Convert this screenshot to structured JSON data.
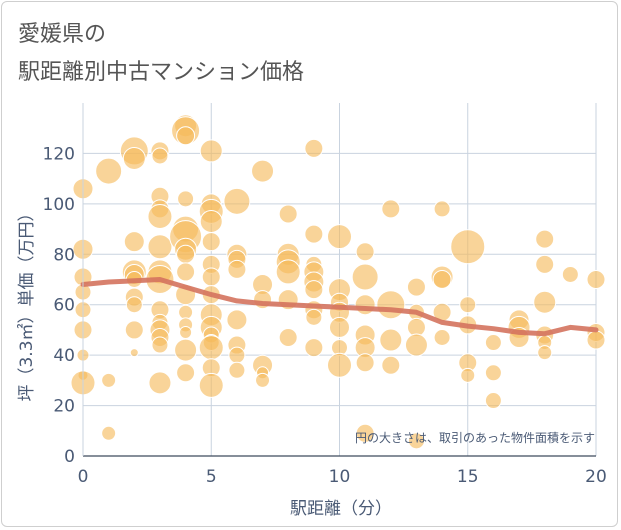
{
  "title_line1": "愛媛県の",
  "title_line2": "駅距離別中古マンション価格",
  "colors": {
    "bubble": "#f5b95a",
    "trend": "#d4735e",
    "grid": "#c9d3df",
    "text": "#4a5a75"
  },
  "chart_data": {
    "type": "scatter",
    "xlabel": "駅距離（分）",
    "ylabel": "坪（3.3㎡）単価（万円）",
    "xlim": [
      0,
      20
    ],
    "ylim": [
      0,
      140
    ],
    "xticks": [
      0,
      5,
      10,
      15,
      20
    ],
    "yticks": [
      0,
      20,
      40,
      60,
      80,
      100,
      120
    ],
    "grid": true,
    "annotation": "円の大きさは、取引のあった物件面積を示す",
    "points": [
      {
        "x": 0,
        "y": 106,
        "s": 10
      },
      {
        "x": 0,
        "y": 82,
        "s": 10
      },
      {
        "x": 0,
        "y": 71,
        "s": 9
      },
      {
        "x": 0,
        "y": 65,
        "s": 8
      },
      {
        "x": 0,
        "y": 58,
        "s": 8
      },
      {
        "x": 0,
        "y": 50,
        "s": 9
      },
      {
        "x": 0,
        "y": 40,
        "s": 6
      },
      {
        "x": 0,
        "y": 32,
        "s": 5
      },
      {
        "x": 0,
        "y": 29,
        "s": 12
      },
      {
        "x": 1,
        "y": 113,
        "s": 13
      },
      {
        "x": 1,
        "y": 30,
        "s": 7
      },
      {
        "x": 1,
        "y": 9,
        "s": 7
      },
      {
        "x": 2,
        "y": 121,
        "s": 14
      },
      {
        "x": 2,
        "y": 118,
        "s": 11
      },
      {
        "x": 2,
        "y": 85,
        "s": 10
      },
      {
        "x": 2,
        "y": 73,
        "s": 12
      },
      {
        "x": 2,
        "y": 72,
        "s": 10
      },
      {
        "x": 2,
        "y": 70,
        "s": 8
      },
      {
        "x": 2,
        "y": 63,
        "s": 9
      },
      {
        "x": 2,
        "y": 60,
        "s": 8
      },
      {
        "x": 2,
        "y": 50,
        "s": 9
      },
      {
        "x": 2,
        "y": 41,
        "s": 4
      },
      {
        "x": 3,
        "y": 121,
        "s": 9
      },
      {
        "x": 3,
        "y": 119,
        "s": 8
      },
      {
        "x": 3,
        "y": 103,
        "s": 9
      },
      {
        "x": 3,
        "y": 98,
        "s": 9
      },
      {
        "x": 3,
        "y": 95,
        "s": 12
      },
      {
        "x": 3,
        "y": 83,
        "s": 12
      },
      {
        "x": 3,
        "y": 73,
        "s": 12
      },
      {
        "x": 3,
        "y": 70,
        "s": 14
      },
      {
        "x": 3,
        "y": 58,
        "s": 9
      },
      {
        "x": 3,
        "y": 53,
        "s": 8
      },
      {
        "x": 3,
        "y": 50,
        "s": 10
      },
      {
        "x": 3,
        "y": 47,
        "s": 9
      },
      {
        "x": 3,
        "y": 44,
        "s": 8
      },
      {
        "x": 3,
        "y": 29,
        "s": 11
      },
      {
        "x": 4,
        "y": 131,
        "s": 11
      },
      {
        "x": 4,
        "y": 129,
        "s": 14
      },
      {
        "x": 4,
        "y": 127,
        "s": 9
      },
      {
        "x": 4,
        "y": 102,
        "s": 8
      },
      {
        "x": 4,
        "y": 90,
        "s": 13
      },
      {
        "x": 4,
        "y": 87,
        "s": 16
      },
      {
        "x": 4,
        "y": 82,
        "s": 11
      },
      {
        "x": 4,
        "y": 80,
        "s": 9
      },
      {
        "x": 4,
        "y": 73,
        "s": 9
      },
      {
        "x": 4,
        "y": 64,
        "s": 10
      },
      {
        "x": 4,
        "y": 57,
        "s": 7
      },
      {
        "x": 4,
        "y": 52,
        "s": 7
      },
      {
        "x": 4,
        "y": 49,
        "s": 6
      },
      {
        "x": 4,
        "y": 42,
        "s": 11
      },
      {
        "x": 4,
        "y": 33,
        "s": 9
      },
      {
        "x": 5,
        "y": 121,
        "s": 11
      },
      {
        "x": 5,
        "y": 100,
        "s": 10
      },
      {
        "x": 5,
        "y": 97,
        "s": 12
      },
      {
        "x": 5,
        "y": 93,
        "s": 11
      },
      {
        "x": 5,
        "y": 85,
        "s": 9
      },
      {
        "x": 5,
        "y": 76,
        "s": 9
      },
      {
        "x": 5,
        "y": 71,
        "s": 9
      },
      {
        "x": 5,
        "y": 64,
        "s": 9
      },
      {
        "x": 5,
        "y": 56,
        "s": 11
      },
      {
        "x": 5,
        "y": 51,
        "s": 11
      },
      {
        "x": 5,
        "y": 48,
        "s": 8
      },
      {
        "x": 5,
        "y": 45,
        "s": 8
      },
      {
        "x": 5,
        "y": 43,
        "s": 12
      },
      {
        "x": 5,
        "y": 35,
        "s": 9
      },
      {
        "x": 5,
        "y": 28,
        "s": 12
      },
      {
        "x": 6,
        "y": 101,
        "s": 13
      },
      {
        "x": 6,
        "y": 80,
        "s": 10
      },
      {
        "x": 6,
        "y": 78,
        "s": 9
      },
      {
        "x": 6,
        "y": 74,
        "s": 9
      },
      {
        "x": 6,
        "y": 54,
        "s": 10
      },
      {
        "x": 6,
        "y": 44,
        "s": 9
      },
      {
        "x": 6,
        "y": 40,
        "s": 8
      },
      {
        "x": 6,
        "y": 34,
        "s": 8
      },
      {
        "x": 7,
        "y": 113,
        "s": 11
      },
      {
        "x": 7,
        "y": 68,
        "s": 10
      },
      {
        "x": 7,
        "y": 62,
        "s": 9
      },
      {
        "x": 7,
        "y": 36,
        "s": 10
      },
      {
        "x": 7,
        "y": 33,
        "s": 6
      },
      {
        "x": 7,
        "y": 30,
        "s": 7
      },
      {
        "x": 8,
        "y": 96,
        "s": 9
      },
      {
        "x": 8,
        "y": 80,
        "s": 11
      },
      {
        "x": 8,
        "y": 77,
        "s": 12
      },
      {
        "x": 8,
        "y": 73,
        "s": 12
      },
      {
        "x": 8,
        "y": 62,
        "s": 10
      },
      {
        "x": 8,
        "y": 47,
        "s": 9
      },
      {
        "x": 9,
        "y": 122,
        "s": 9
      },
      {
        "x": 9,
        "y": 88,
        "s": 9
      },
      {
        "x": 9,
        "y": 76,
        "s": 8
      },
      {
        "x": 9,
        "y": 73,
        "s": 10
      },
      {
        "x": 9,
        "y": 69,
        "s": 10
      },
      {
        "x": 9,
        "y": 66,
        "s": 9
      },
      {
        "x": 9,
        "y": 58,
        "s": 9
      },
      {
        "x": 9,
        "y": 55,
        "s": 8
      },
      {
        "x": 9,
        "y": 43,
        "s": 9
      },
      {
        "x": 10,
        "y": 87,
        "s": 12
      },
      {
        "x": 10,
        "y": 66,
        "s": 11
      },
      {
        "x": 10,
        "y": 61,
        "s": 9
      },
      {
        "x": 10,
        "y": 57,
        "s": 10
      },
      {
        "x": 10,
        "y": 51,
        "s": 10
      },
      {
        "x": 10,
        "y": 43,
        "s": 8
      },
      {
        "x": 10,
        "y": 36,
        "s": 12
      },
      {
        "x": 11,
        "y": 81,
        "s": 9
      },
      {
        "x": 11,
        "y": 71,
        "s": 13
      },
      {
        "x": 11,
        "y": 60,
        "s": 10
      },
      {
        "x": 11,
        "y": 48,
        "s": 10
      },
      {
        "x": 11,
        "y": 43,
        "s": 10
      },
      {
        "x": 11,
        "y": 37,
        "s": 9
      },
      {
        "x": 11,
        "y": 9,
        "s": 9
      },
      {
        "x": 12,
        "y": 98,
        "s": 9
      },
      {
        "x": 12,
        "y": 60,
        "s": 14
      },
      {
        "x": 12,
        "y": 46,
        "s": 11
      },
      {
        "x": 12,
        "y": 36,
        "s": 9
      },
      {
        "x": 13,
        "y": 67,
        "s": 9
      },
      {
        "x": 13,
        "y": 57,
        "s": 8
      },
      {
        "x": 13,
        "y": 51,
        "s": 9
      },
      {
        "x": 13,
        "y": 44,
        "s": 11
      },
      {
        "x": 13,
        "y": 6,
        "s": 8
      },
      {
        "x": 14,
        "y": 98,
        "s": 8
      },
      {
        "x": 14,
        "y": 71,
        "s": 11
      },
      {
        "x": 14,
        "y": 70,
        "s": 9
      },
      {
        "x": 14,
        "y": 57,
        "s": 9
      },
      {
        "x": 14,
        "y": 47,
        "s": 8
      },
      {
        "x": 15,
        "y": 83,
        "s": 17
      },
      {
        "x": 15,
        "y": 60,
        "s": 8
      },
      {
        "x": 15,
        "y": 52,
        "s": 9
      },
      {
        "x": 15,
        "y": 37,
        "s": 9
      },
      {
        "x": 15,
        "y": 32,
        "s": 7
      },
      {
        "x": 16,
        "y": 45,
        "s": 8
      },
      {
        "x": 16,
        "y": 33,
        "s": 8
      },
      {
        "x": 16,
        "y": 22,
        "s": 8
      },
      {
        "x": 17,
        "y": 54,
        "s": 10
      },
      {
        "x": 17,
        "y": 51,
        "s": 11
      },
      {
        "x": 17,
        "y": 47,
        "s": 10
      },
      {
        "x": 18,
        "y": 86,
        "s": 9
      },
      {
        "x": 18,
        "y": 76,
        "s": 9
      },
      {
        "x": 18,
        "y": 61,
        "s": 11
      },
      {
        "x": 18,
        "y": 48,
        "s": 9
      },
      {
        "x": 18,
        "y": 45,
        "s": 7
      },
      {
        "x": 18,
        "y": 41,
        "s": 7
      },
      {
        "x": 19,
        "y": 72,
        "s": 8
      },
      {
        "x": 20,
        "y": 70,
        "s": 9
      },
      {
        "x": 20,
        "y": 49,
        "s": 9
      },
      {
        "x": 20,
        "y": 46,
        "s": 9
      }
    ],
    "trend": [
      {
        "x": 0,
        "y": 68
      },
      {
        "x": 1,
        "y": 69
      },
      {
        "x": 2,
        "y": 69.5
      },
      {
        "x": 3,
        "y": 70
      },
      {
        "x": 4,
        "y": 67
      },
      {
        "x": 5,
        "y": 64
      },
      {
        "x": 6,
        "y": 61.5
      },
      {
        "x": 7,
        "y": 60.5
      },
      {
        "x": 8,
        "y": 60
      },
      {
        "x": 9,
        "y": 59.5
      },
      {
        "x": 10,
        "y": 59
      },
      {
        "x": 11,
        "y": 58.5
      },
      {
        "x": 12,
        "y": 58
      },
      {
        "x": 13,
        "y": 57
      },
      {
        "x": 14,
        "y": 53
      },
      {
        "x": 15,
        "y": 51.5
      },
      {
        "x": 16,
        "y": 50.5
      },
      {
        "x": 17,
        "y": 49
      },
      {
        "x": 18,
        "y": 48.5
      },
      {
        "x": 19,
        "y": 51
      },
      {
        "x": 20,
        "y": 50
      }
    ]
  }
}
